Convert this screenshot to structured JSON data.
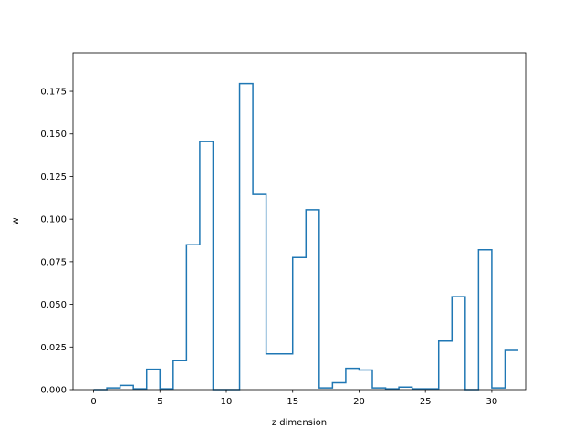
{
  "chart_data": {
    "type": "step",
    "title": "",
    "xlabel": "z dimension",
    "ylabel": "w",
    "xlim": [
      -1.55,
      32.55
    ],
    "ylim": [
      0,
      0.1975
    ],
    "xticks": [
      0,
      5,
      10,
      15,
      20,
      25,
      30
    ],
    "yticks": [
      0.0,
      0.025,
      0.05,
      0.075,
      0.1,
      0.125,
      0.15,
      0.175
    ],
    "ytick_labels": [
      "0.000",
      "0.025",
      "0.050",
      "0.075",
      "0.100",
      "0.125",
      "0.150",
      "0.175"
    ],
    "grid": false,
    "line_color": "#1f77b4",
    "x": [
      0,
      1,
      2,
      3,
      4,
      5,
      6,
      7,
      8,
      9,
      10,
      11,
      12,
      13,
      14,
      15,
      16,
      17,
      18,
      19,
      20,
      21,
      22,
      23,
      24,
      25,
      26,
      27,
      28,
      29,
      30,
      31
    ],
    "values": [
      0.0,
      0.001,
      0.0025,
      0.0005,
      0.012,
      0.0005,
      0.017,
      0.085,
      0.1455,
      0.0,
      0.0,
      0.1795,
      0.1145,
      0.021,
      0.021,
      0.0775,
      0.1055,
      0.001,
      0.004,
      0.0125,
      0.0115,
      0.001,
      0.0005,
      0.0015,
      0.0005,
      0.0005,
      0.0285,
      0.0545,
      0.0,
      0.082,
      0.001,
      0.023
    ]
  }
}
